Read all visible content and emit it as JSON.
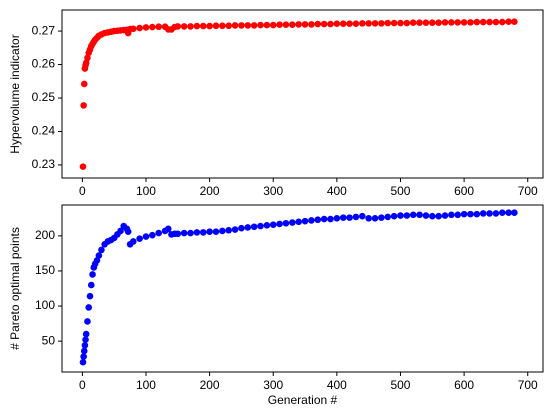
{
  "chart_data": [
    {
      "type": "scatter",
      "y_label": "Hypervolume indicator",
      "color": "#ff0000",
      "xlim": [
        -32,
        724
      ],
      "ylim": [
        0.2261,
        0.2763
      ],
      "xticks": [
        0,
        100,
        200,
        300,
        400,
        500,
        600,
        700
      ],
      "yticks": [
        0.23,
        0.24,
        0.25,
        0.26,
        0.27
      ],
      "x": [
        1,
        2,
        3,
        4,
        5,
        6,
        8,
        10,
        12,
        14,
        16,
        18,
        20,
        23,
        26,
        30,
        35,
        40,
        45,
        50,
        55,
        60,
        65,
        70,
        72,
        75,
        80,
        90,
        100,
        110,
        120,
        130,
        135,
        140,
        145,
        150,
        160,
        170,
        180,
        190,
        200,
        210,
        220,
        230,
        240,
        250,
        260,
        270,
        280,
        290,
        300,
        310,
        320,
        330,
        340,
        350,
        360,
        370,
        380,
        390,
        400,
        410,
        420,
        430,
        440,
        450,
        460,
        470,
        480,
        490,
        500,
        510,
        520,
        530,
        540,
        550,
        560,
        570,
        580,
        590,
        600,
        610,
        620,
        630,
        640,
        650,
        660,
        670,
        679
      ],
      "values": [
        0.2295,
        0.2478,
        0.2542,
        0.2588,
        0.2598,
        0.2605,
        0.262,
        0.2635,
        0.2645,
        0.2655,
        0.2662,
        0.2668,
        0.2674,
        0.268,
        0.2686,
        0.269,
        0.2694,
        0.2696,
        0.2698,
        0.27,
        0.2701,
        0.2702,
        0.2703,
        0.2704,
        0.2694,
        0.2706,
        0.2707,
        0.2709,
        0.2711,
        0.2712,
        0.2713,
        0.2713,
        0.2705,
        0.2705,
        0.2712,
        0.2714,
        0.2714,
        0.2714,
        0.2715,
        0.2715,
        0.2715,
        0.2716,
        0.2716,
        0.2716,
        0.2717,
        0.2717,
        0.2717,
        0.2717,
        0.2718,
        0.2718,
        0.2718,
        0.2719,
        0.2719,
        0.2719,
        0.272,
        0.272,
        0.272,
        0.2721,
        0.2721,
        0.2721,
        0.2722,
        0.2722,
        0.2722,
        0.2722,
        0.2723,
        0.2723,
        0.2723,
        0.2723,
        0.2724,
        0.2724,
        0.2724,
        0.2724,
        0.2725,
        0.2725,
        0.2725,
        0.2725,
        0.2725,
        0.2726,
        0.2726,
        0.2726,
        0.2726,
        0.2726,
        0.2727,
        0.2727,
        0.2727,
        0.2727,
        0.2727,
        0.2728,
        0.2728
      ]
    },
    {
      "type": "scatter",
      "y_label": "# Pareto optimal points",
      "x_label": "Generation #",
      "color": "#0000ff",
      "xlim": [
        -32,
        724
      ],
      "ylim": [
        6,
        244
      ],
      "xticks": [
        0,
        100,
        200,
        300,
        400,
        500,
        600,
        700
      ],
      "yticks": [
        50,
        100,
        150,
        200
      ],
      "x": [
        1,
        2,
        3,
        4,
        5,
        6,
        8,
        10,
        12,
        14,
        16,
        18,
        20,
        23,
        26,
        30,
        35,
        40,
        45,
        50,
        55,
        60,
        65,
        70,
        72,
        75,
        80,
        90,
        100,
        110,
        120,
        130,
        135,
        140,
        145,
        150,
        160,
        170,
        180,
        190,
        200,
        210,
        220,
        230,
        240,
        250,
        260,
        270,
        280,
        290,
        300,
        310,
        320,
        330,
        340,
        350,
        360,
        370,
        380,
        390,
        400,
        410,
        420,
        430,
        440,
        450,
        460,
        470,
        480,
        490,
        500,
        510,
        520,
        530,
        540,
        550,
        560,
        570,
        580,
        590,
        600,
        610,
        620,
        630,
        640,
        650,
        660,
        670,
        679
      ],
      "values": [
        20,
        28,
        36,
        44,
        52,
        60,
        78,
        98,
        114,
        130,
        145,
        155,
        160,
        165,
        172,
        180,
        188,
        192,
        194,
        197,
        202,
        207,
        214,
        210,
        206,
        188,
        192,
        196,
        199,
        201,
        204,
        207,
        210,
        202,
        203,
        203,
        204,
        204,
        205,
        205,
        206,
        206,
        207,
        208,
        209,
        211,
        212,
        213,
        214,
        215,
        216,
        217,
        218,
        219,
        220,
        221,
        222,
        223,
        224,
        224,
        225,
        226,
        226,
        227,
        228,
        225,
        225,
        226,
        227,
        228,
        229,
        229,
        230,
        230,
        229,
        228,
        228,
        229,
        230,
        230,
        231,
        231,
        231,
        232,
        232,
        232,
        233,
        233,
        233
      ]
    }
  ]
}
